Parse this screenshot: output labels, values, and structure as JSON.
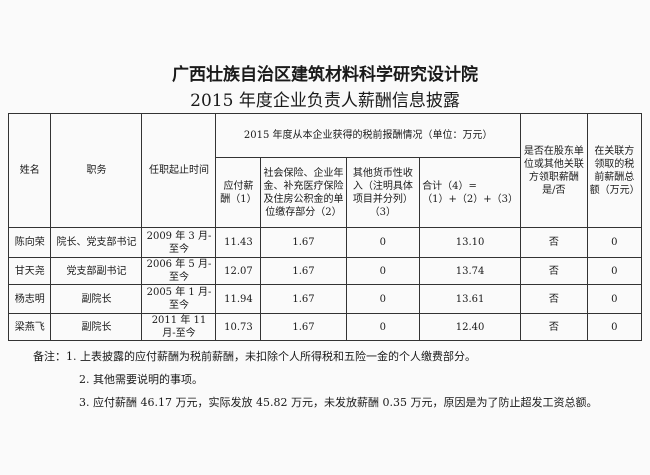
{
  "title_line1": "广西壮族自治区建筑材料科学研究设计院",
  "title_line2": "2015 年度企业负责人薪酬信息披露",
  "headers": {
    "name": "姓名",
    "role": "职务",
    "tenure": "任职起止时间",
    "group": "2015 年度从本企业获得的税前报酬情况（单位：万元）",
    "c1": "应付薪酬（1）",
    "c2": "社会保险、企业年金、补充医疗保险及住房公积金的单位缴存部分（2）",
    "c3": "其他货币性收入（注明具体项目并分列）（3）",
    "c4": "合计（4）=（1）+（2）+（3）",
    "c5": "是否在股东单位或其他关联方领职薪酬是/否",
    "c6": "在关联方领取的税前薪酬总额（万元）"
  },
  "rows": [
    {
      "name": "陈向荣",
      "role": "院长、党支部书记",
      "tenure": "2009 年 3 月-至今",
      "c1": "11.43",
      "c2": "1.67",
      "c3": "0",
      "c4": "13.10",
      "c5": "否",
      "c6": "0"
    },
    {
      "name": "甘天尧",
      "role": "党支部副书记",
      "tenure": "2006 年 5 月-至今",
      "c1": "12.07",
      "c2": "1.67",
      "c3": "0",
      "c4": "13.74",
      "c5": "否",
      "c6": "0"
    },
    {
      "name": "杨志明",
      "role": "副院长",
      "tenure": "2005 年 1 月-至今",
      "c1": "11.94",
      "c2": "1.67",
      "c3": "0",
      "c4": "13.61",
      "c5": "否",
      "c6": "0"
    },
    {
      "name": "梁燕飞",
      "role": "副院长",
      "tenure": "2011 年 11 月-至今",
      "c1": "10.73",
      "c2": "1.67",
      "c3": "0",
      "c4": "12.40",
      "c5": "否",
      "c6": "0"
    }
  ],
  "notes": [
    "备注：1. 上表披露的应付薪酬为税前薪酬，未扣除个人所得税和五险一金的个人缴费部分。",
    "2. 其他需要说明的事项。",
    "3. 应付薪酬 46.17 万元，实际发放 45.82 万元，未发放薪酬 0.35 万元，原因是为了防止超发工资总额。"
  ]
}
